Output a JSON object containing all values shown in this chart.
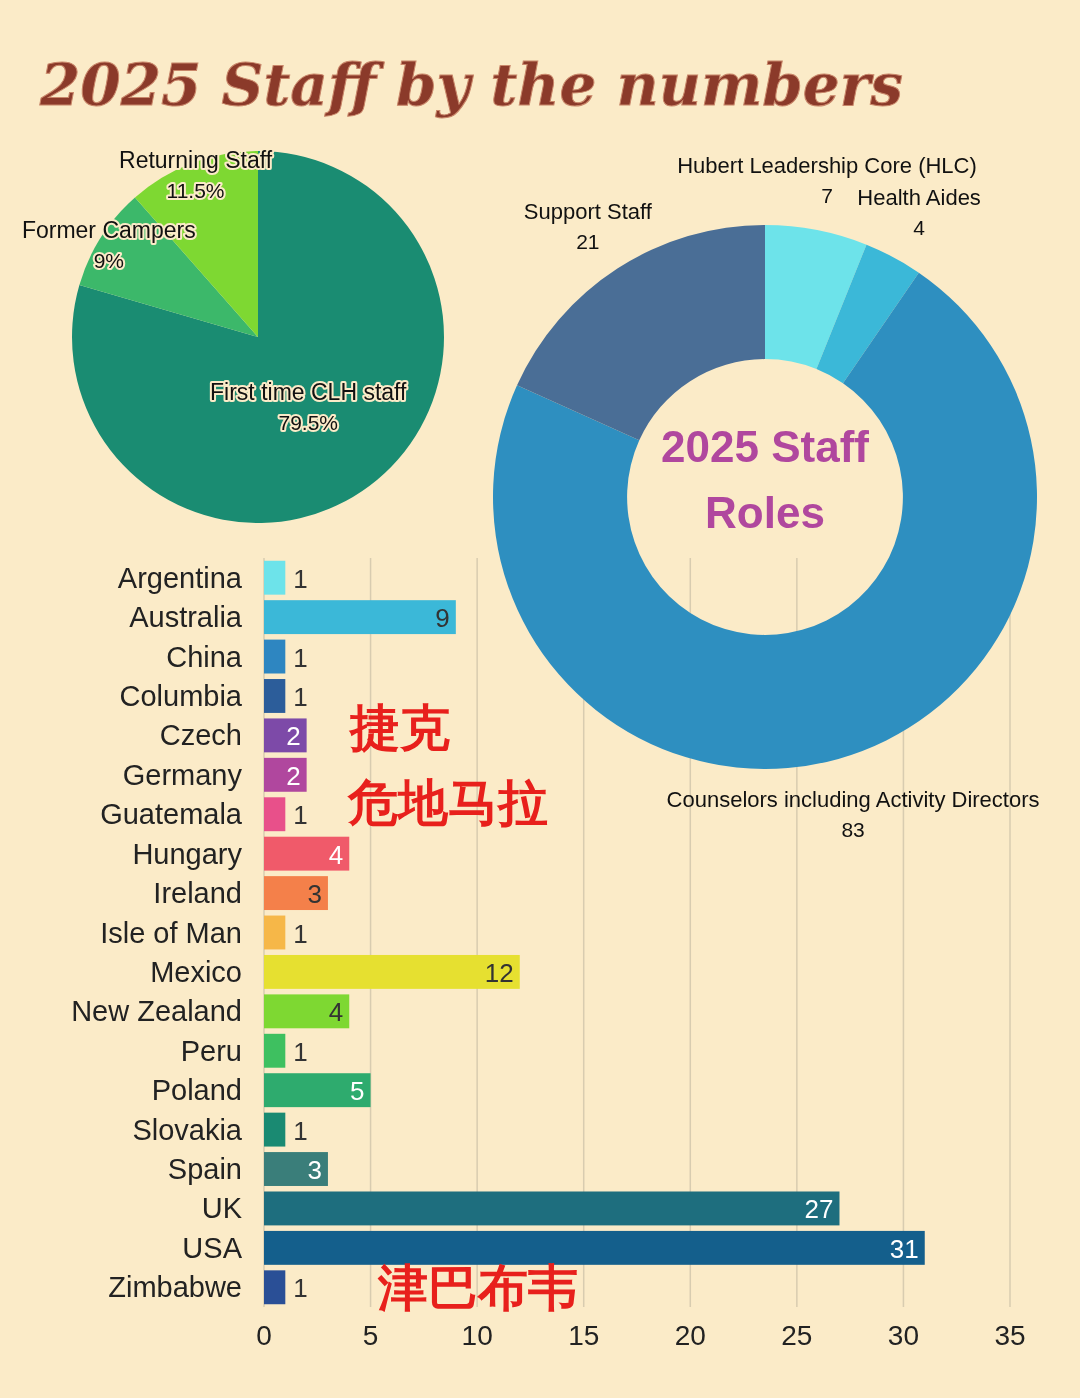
{
  "chart_data": [
    {
      "type": "pie",
      "title": "2025 Staff by the numbers",
      "categories": [
        "First time CLH staff",
        "Former Campers",
        "Returning Staff"
      ],
      "values": [
        79.5,
        9,
        11.5
      ],
      "value_labels": [
        "79.5%",
        "9%",
        "11.5%"
      ],
      "colors": [
        "#1a8c72",
        "#3cb86a",
        "#7ed832"
      ]
    },
    {
      "type": "donut",
      "title": "2025 Staff Roles",
      "categories": [
        "Hubert Leadership Core (HLC)",
        "Health Aides",
        "Counselors including Activity Directors",
        "Support Staff"
      ],
      "values": [
        7,
        4,
        83,
        21
      ],
      "colors": [
        "#6de3ea",
        "#3bb8d8",
        "#2e8fc0",
        "#4a6e96"
      ],
      "data_labels": true
    },
    {
      "type": "bar",
      "orientation": "horizontal",
      "categories": [
        "Argentina",
        "Australia",
        "China",
        "Columbia",
        "Czech",
        "Germany",
        "Guatemala",
        "Hungary",
        "Ireland",
        "Isle of Man",
        "Mexico",
        "New Zealand",
        "Peru",
        "Poland",
        "Slovakia",
        "Spain",
        "UK",
        "USA",
        "Zimbabwe"
      ],
      "values": [
        1,
        9,
        1,
        1,
        2,
        2,
        1,
        4,
        3,
        1,
        12,
        4,
        1,
        5,
        1,
        3,
        27,
        31,
        1
      ],
      "colors": [
        "#6de3ea",
        "#3bb8d8",
        "#2e86c1",
        "#2c5d9a",
        "#7d4aa8",
        "#b0479e",
        "#e8508a",
        "#f05a6a",
        "#f4804a",
        "#f6b748",
        "#e6e030",
        "#7ed832",
        "#3ec060",
        "#2eab6e",
        "#1a8a72",
        "#3a7e7a",
        "#1e6e7e",
        "#145f8c",
        "#2a4f96"
      ],
      "xlim": [
        0,
        35
      ],
      "xticks": [
        0,
        5,
        10,
        15,
        20,
        25,
        30,
        35
      ],
      "grid": "x",
      "data_labels": true,
      "annotations": [
        "捷克",
        "危地马拉",
        "津巴布韦"
      ]
    }
  ]
}
